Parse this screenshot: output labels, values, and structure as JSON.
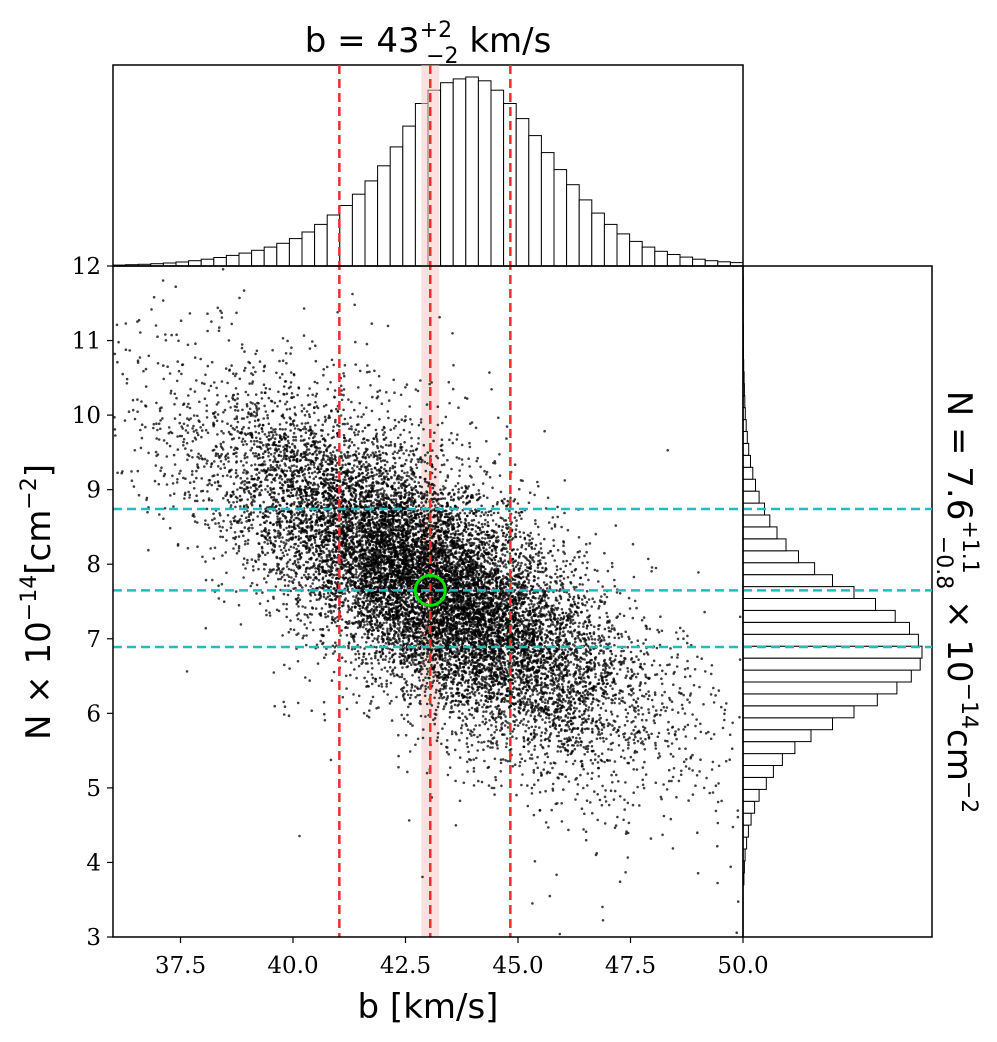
{
  "chart_data": {
    "type": "scatter",
    "title": "b = 43",
    "title_sup": "+2",
    "title_sub": "−2",
    "title_unit": " km/s",
    "xlabel": "b [km/s]",
    "ylabel_main": "N × 10",
    "ylabel_exp": "−14",
    "ylabel_unit": "[cm",
    "ylabel_unit_exp": "−2",
    "ylabel_close": "]",
    "right_label_main": "N = 7.6",
    "right_label_sup": "+1.1",
    "right_label_sub": "−0.8",
    "right_label_mid": " × 10",
    "right_label_exp": "−14",
    "right_label_unit": "cm",
    "right_label_unit_exp": "−2",
    "xlim": [
      36.0,
      50.0
    ],
    "ylim": [
      3,
      12
    ],
    "x_ticks": [
      "37.5",
      "40.0",
      "42.5",
      "45.0",
      "47.5",
      "50.0"
    ],
    "x_tick_values": [
      37.5,
      40.0,
      42.5,
      45.0,
      47.5,
      50.0
    ],
    "y_ticks": [
      "3",
      "4",
      "5",
      "6",
      "7",
      "8",
      "9",
      "10",
      "11",
      "12"
    ],
    "y_tick_values": [
      3,
      4,
      5,
      6,
      7,
      8,
      9,
      10,
      11,
      12
    ],
    "best_fit": {
      "b": 43.05,
      "N": 7.65
    },
    "b_lines": [
      41.03,
      43.05,
      44.83
    ],
    "N_lines": [
      6.89,
      7.65,
      8.74
    ],
    "scatter_model": {
      "n_points": 14000,
      "b_mean": 43.0,
      "b_sd": 2.1,
      "N_mean": 7.75,
      "N_sd": 1.05,
      "corr": -0.72
    },
    "b_hist": {
      "bin_start": 36.0,
      "bin_width": 0.28,
      "counts": [
        0.005,
        0.007,
        0.009,
        0.012,
        0.016,
        0.021,
        0.028,
        0.036,
        0.045,
        0.056,
        0.068,
        0.083,
        0.1,
        0.12,
        0.145,
        0.18,
        0.22,
        0.27,
        0.32,
        0.38,
        0.45,
        0.53,
        0.63,
        0.74,
        0.86,
        0.93,
        0.97,
        0.99,
        1.0,
        0.98,
        0.93,
        0.86,
        0.78,
        0.69,
        0.6,
        0.51,
        0.43,
        0.35,
        0.28,
        0.22,
        0.17,
        0.13,
        0.1,
        0.078,
        0.061,
        0.047,
        0.036,
        0.028,
        0.022,
        0.018,
        0.014
      ]
    },
    "N_hist": {
      "bin_start": 3.7,
      "bin_width": 0.16,
      "counts": [
        0.005,
        0.008,
        0.012,
        0.02,
        0.03,
        0.045,
        0.065,
        0.09,
        0.13,
        0.17,
        0.22,
        0.29,
        0.38,
        0.5,
        0.62,
        0.75,
        0.86,
        0.94,
        0.99,
        1.0,
        0.98,
        0.93,
        0.85,
        0.74,
        0.62,
        0.5,
        0.4,
        0.31,
        0.24,
        0.19,
        0.15,
        0.12,
        0.09,
        0.07,
        0.055,
        0.042,
        0.032,
        0.024,
        0.018,
        0.013,
        0.01,
        0.008,
        0.006,
        0.004,
        0.003,
        0.002,
        0.002,
        0.001,
        0.001,
        0.001,
        0.001,
        0.001,
        0.001
      ]
    },
    "colors": {
      "points": "#000000",
      "b_lines": "#e8302c",
      "N_lines": "#22bcc0",
      "marker": "#00e600",
      "band": "#f5c9c7",
      "hist_fill": "#ffffff",
      "hist_edge": "#000000"
    }
  }
}
